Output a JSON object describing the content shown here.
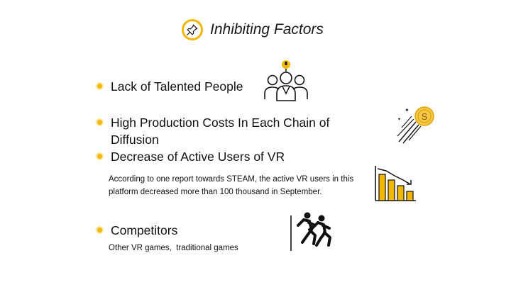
{
  "title": "Inhibiting Factors",
  "icons": {
    "title_icon": "pushpin-icon",
    "people_icon": "talent-group-icon",
    "coin_icon": "flying-coin-icon",
    "chart_icon": "declining-bar-chart-icon",
    "race_icon": "runners-race-icon"
  },
  "colors": {
    "accent": "#f2b705",
    "text": "#111111"
  },
  "items": [
    {
      "label": "Lack of Talented People"
    },
    {
      "label": "High Production Costs In Each Chain of Diffusion"
    },
    {
      "label": "Decrease of Active Users of VR",
      "detail": "According to one report towards STEAM, the active VR users in this platform decreased more than 100 thousand in September."
    },
    {
      "label": "Competitors",
      "detail": "Other VR games,  traditional games"
    }
  ]
}
